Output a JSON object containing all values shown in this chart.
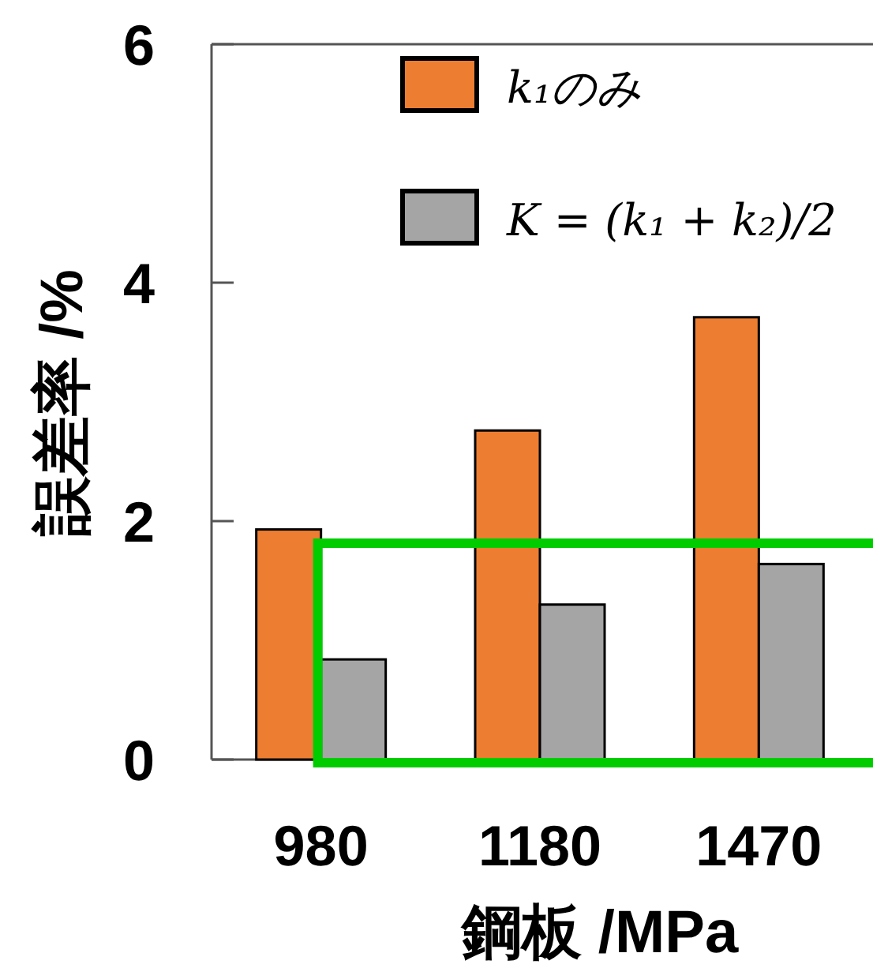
{
  "chart_data": {
    "type": "bar",
    "xlabel": "鋼板 /MPa",
    "ylabel": "誤差率 /%",
    "categories": [
      "980",
      "1180",
      "1470"
    ],
    "series": [
      {
        "name": "k₁のみ",
        "color": "#ed7d31",
        "values": [
          1.93,
          2.76,
          3.71
        ]
      },
      {
        "name": "K = (k₁ + k₂)/2",
        "color": "#a5a5a5",
        "values": [
          0.84,
          1.3,
          1.64
        ]
      }
    ],
    "ylim": [
      0,
      6
    ],
    "yticks": [
      0,
      2,
      4,
      6
    ],
    "grid": false,
    "legend": "top"
  }
}
